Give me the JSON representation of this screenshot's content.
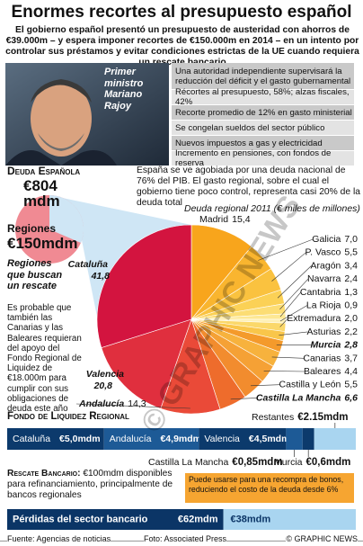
{
  "header": {
    "title": "Enormes recortes al presupuesto español",
    "intro": "El gobierno español presentó un presupuesto de austeridad con ahorros de €39.000m – y espera imponer recortes de €150.000m en 2014 – en un intento por controlar sus préstamos y evitar condiciones estrictas de la UE cuando requiera un rescate bancario"
  },
  "photo_caption": "Primer ministro Mariano Rajoy",
  "measures": [
    "Una autoridad independiente supervisará la reducción del déficit y el gasto gubernamental",
    "Récortes al presupuesto, 58%; alzas fiscales, 42%",
    "Recorte promedio de 12% en gasto ministerial",
    "Se congelan sueldos del sector público",
    "Nuevos impuestos a gas y electricidad",
    "Incremento en pensiones, con fondos de reserva"
  ],
  "debt": {
    "label": "Deuda Española",
    "value": "€804 mdm",
    "note": "España se ve agobiada por una deuda nacional de 76% del PIB. El gasto regional, sobre el cual el gobierno tiene poco control, representa casi 20% de la deuda total"
  },
  "regions": {
    "label": "Regiones",
    "value": "€150mdm",
    "subtitle": "Regiones que buscan un rescate",
    "note": "Es probable que también las Canarias y las Baleares requieran del apoyo del Fondo Regional de Liquidez de €18.000m para cumplir con sus obligaciones de deuda este año"
  },
  "watermark": "© GRAPHIC NEWS",
  "chart_data": [
    {
      "type": "pie",
      "title": "Deuda regional 2011 (€ miles de millones)",
      "categories": [
        "Madrid",
        "Galicia",
        "P. Vasco",
        "Aragón",
        "Navarra",
        "Cantabria",
        "La Rioja",
        "Extremadura",
        "Asturias",
        "Murcia",
        "Canarias",
        "Baleares",
        "Castilla y León",
        "Castilla La Mancha",
        "Andalucía",
        "Valencia",
        "Cataluña"
      ],
      "values": [
        15.4,
        7.0,
        5.5,
        3.4,
        2.4,
        1.3,
        0.9,
        2.0,
        2.2,
        2.8,
        3.7,
        4.4,
        5.5,
        6.6,
        14.3,
        20.8,
        41.8
      ],
      "value_labels": [
        "15,4",
        "7,0",
        "5,5",
        "3,4",
        "2,4",
        "1,3",
        "0,9",
        "2,0",
        "2,2",
        "2,8",
        "3,7",
        "4,4",
        "5,5",
        "6,6",
        "14,3",
        "20,8",
        "41,8"
      ],
      "colors": [
        "#f8a51c",
        "#f9b52f",
        "#fac23f",
        "#fbd156",
        "#fcdd74",
        "#fde894",
        "#fef0b6",
        "#fbd86a",
        "#f9c64a",
        "#f49a2b",
        "#f7b23d",
        "#f5a135",
        "#f28c2e",
        "#ee6c2c",
        "#ea4a38",
        "#e02f3e",
        "#d3143f"
      ],
      "highlight": [
        false,
        false,
        false,
        false,
        false,
        false,
        false,
        false,
        false,
        true,
        false,
        false,
        false,
        true,
        true,
        true,
        true
      ]
    },
    {
      "type": "stacked-bar",
      "title": "Fondo de Liquidez Regional",
      "categories": [
        "Cataluña",
        "Andalucía",
        "Valencia",
        "Castilla La Mancha",
        "Murcia",
        "Restantes"
      ],
      "values": [
        5.0,
        4.9,
        4.5,
        0.85,
        0.6,
        2.15
      ],
      "value_labels": [
        "€5,0mdm",
        "€4,9mdm",
        "€4,5mdm",
        "€0,85mdm",
        "€0,6mdm",
        "€2.15mdm"
      ],
      "colors": [
        "#0c3a6c",
        "#1d5a96",
        "#0c3a6c",
        "#1d5a96",
        "#0c3a6c",
        "#a9d5f0"
      ]
    },
    {
      "type": "stacked-bar",
      "title": "Rescate Bancario:",
      "subtitle": "€100mdm disponibles para refinanciamiento, principalmente de bancos regionales",
      "annotation": "Puede usarse para una recompra de bonos, reduciendo el costo de la deuda desde 6%",
      "categories": [
        "Pérdidas del sector bancario",
        null
      ],
      "values": [
        62,
        38
      ],
      "value_labels": [
        "€62mdm",
        "€38mdm"
      ],
      "colors": [
        "#0b3566",
        "#a9d5f0"
      ]
    }
  ],
  "footer": {
    "source": "Fuente: Agencias de noticias",
    "photo": "Foto: Associated Press",
    "credit": "© GRAPHIC NEWS"
  }
}
